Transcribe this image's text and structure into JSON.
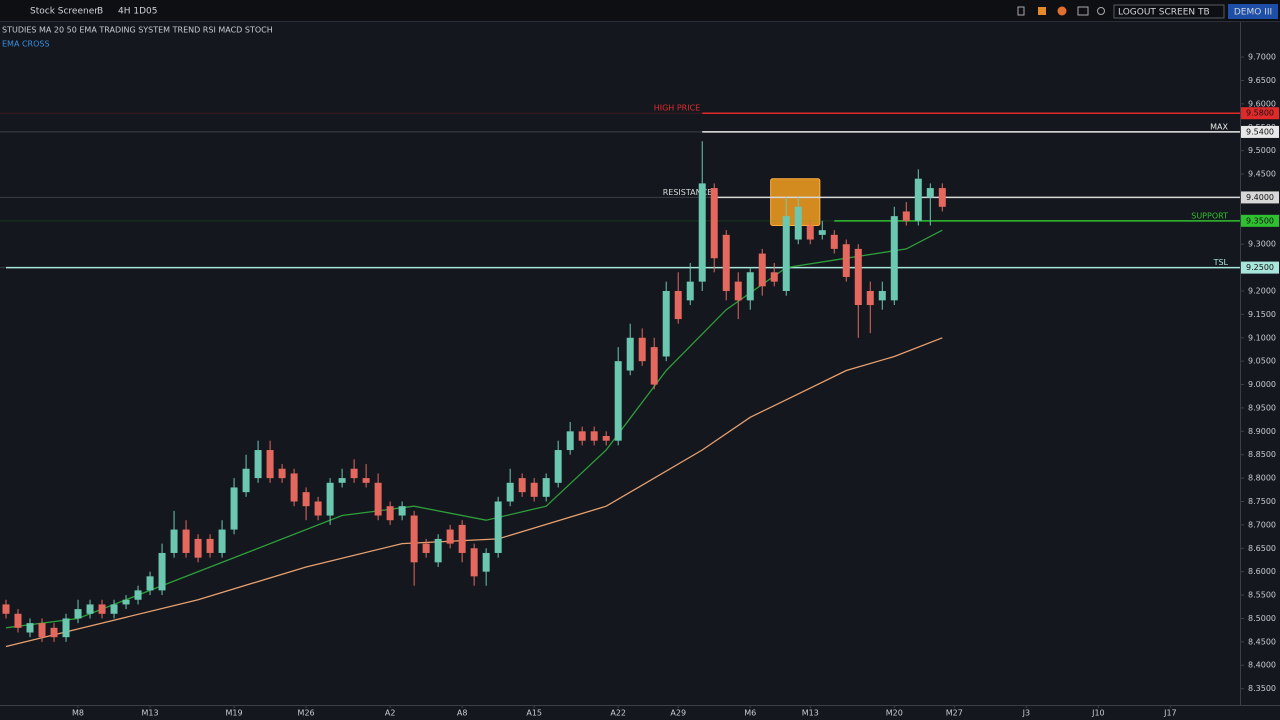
{
  "toolbar": {
    "left": [
      "Stock Screener",
      "B",
      "4H 1D05"
    ],
    "right": [
      "LOGOUT SCREEN TB",
      "DEMO III"
    ]
  },
  "chart_data": {
    "type": "candlestick",
    "title": "STUDIES MA 20 50 EMA TRADING SYSTEM TREND RSI MACD STOCH",
    "subtitle": "EMA CROSS",
    "up_color": "#6cc7b0",
    "down_color": "#e5685e",
    "open": [
      8.53,
      8.51,
      8.47,
      8.49,
      8.48,
      8.46,
      8.5,
      8.51,
      8.53,
      8.51,
      8.53,
      8.54,
      8.56,
      8.56,
      8.64,
      8.69,
      8.67,
      8.67,
      8.64,
      8.69,
      8.77,
      8.8,
      8.86,
      8.82,
      8.81,
      8.77,
      8.75,
      8.72,
      8.79,
      8.82,
      8.8,
      8.79,
      8.74,
      8.72,
      8.72,
      8.66,
      8.62,
      8.69,
      8.7,
      8.65,
      8.6,
      8.64,
      8.75,
      8.8,
      8.79,
      8.76,
      8.79,
      8.86,
      8.9,
      8.9,
      8.89,
      8.88,
      9.03,
      9.1,
      9.08,
      9.06,
      9.2,
      9.18,
      9.22,
      9.42,
      9.32,
      9.22,
      9.18,
      9.28,
      9.24,
      9.2,
      9.31,
      9.34,
      9.32,
      9.32,
      9.3,
      9.29,
      9.2,
      9.18,
      9.18,
      9.37,
      9.35,
      9.4,
      9.42
    ],
    "high": [
      8.54,
      8.52,
      8.5,
      8.5,
      8.49,
      8.51,
      8.54,
      8.54,
      8.54,
      8.54,
      8.55,
      8.57,
      8.6,
      8.66,
      8.73,
      8.71,
      8.68,
      8.68,
      8.71,
      8.8,
      8.85,
      8.88,
      8.88,
      8.83,
      8.82,
      8.78,
      8.76,
      8.8,
      8.82,
      8.84,
      8.83,
      8.81,
      8.75,
      8.75,
      8.73,
      8.67,
      8.68,
      8.7,
      8.71,
      8.66,
      8.65,
      8.76,
      8.82,
      8.81,
      8.8,
      8.81,
      8.88,
      8.92,
      8.91,
      8.91,
      8.9,
      9.08,
      9.13,
      9.12,
      9.1,
      9.22,
      9.24,
      9.26,
      9.52,
      9.43,
      9.33,
      9.24,
      9.25,
      9.29,
      9.26,
      9.4,
      9.4,
      9.35,
      9.35,
      9.33,
      9.31,
      9.3,
      9.22,
      9.22,
      9.38,
      9.39,
      9.46,
      9.43,
      9.43
    ],
    "low": [
      8.5,
      8.47,
      8.46,
      8.45,
      8.45,
      8.45,
      8.49,
      8.5,
      8.5,
      8.5,
      8.52,
      8.53,
      8.55,
      8.55,
      8.63,
      8.63,
      8.62,
      8.63,
      8.63,
      8.68,
      8.76,
      8.79,
      8.79,
      8.79,
      8.74,
      8.71,
      8.71,
      8.7,
      8.78,
      8.79,
      8.78,
      8.71,
      8.7,
      8.71,
      8.57,
      8.63,
      8.61,
      8.65,
      8.62,
      8.57,
      8.57,
      8.63,
      8.74,
      8.76,
      8.75,
      8.75,
      8.78,
      8.85,
      8.87,
      8.87,
      8.87,
      8.87,
      9.02,
      9.04,
      8.99,
      9.05,
      9.13,
      9.17,
      9.2,
      9.24,
      9.18,
      9.14,
      9.16,
      9.19,
      9.21,
      9.19,
      9.3,
      9.3,
      9.31,
      9.28,
      9.22,
      9.1,
      9.11,
      9.16,
      9.17,
      9.34,
      9.34,
      9.34,
      9.37
    ],
    "close": [
      8.51,
      8.48,
      8.49,
      8.46,
      8.46,
      8.5,
      8.52,
      8.53,
      8.51,
      8.53,
      8.54,
      8.56,
      8.59,
      8.64,
      8.69,
      8.64,
      8.63,
      8.64,
      8.69,
      8.78,
      8.82,
      8.86,
      8.8,
      8.8,
      8.75,
      8.74,
      8.72,
      8.79,
      8.8,
      8.8,
      8.79,
      8.72,
      8.71,
      8.74,
      8.62,
      8.64,
      8.67,
      8.66,
      8.64,
      8.59,
      8.64,
      8.75,
      8.79,
      8.77,
      8.76,
      8.8,
      8.86,
      8.9,
      8.88,
      8.88,
      8.88,
      9.05,
      9.1,
      9.05,
      9.0,
      9.2,
      9.14,
      9.22,
      9.43,
      9.27,
      9.2,
      9.18,
      9.24,
      9.21,
      9.22,
      9.36,
      9.38,
      9.31,
      9.33,
      9.29,
      9.23,
      9.17,
      9.17,
      9.2,
      9.36,
      9.35,
      9.44,
      9.42,
      9.38
    ],
    "series": [
      {
        "color": "#2e9e3a",
        "x": [
          0,
          6,
          12,
          20,
          28,
          34,
          40,
          45,
          50,
          55,
          60,
          65,
          70,
          75,
          78
        ],
        "values": [
          8.48,
          8.5,
          8.56,
          8.64,
          8.72,
          8.74,
          8.71,
          8.74,
          8.86,
          9.03,
          9.16,
          9.25,
          9.27,
          9.29,
          9.33
        ]
      },
      {
        "color": "#e8a070",
        "x": [
          0,
          8,
          16,
          25,
          33,
          41,
          50,
          58,
          62,
          66,
          70,
          74,
          78
        ],
        "values": [
          8.44,
          8.49,
          8.54,
          8.61,
          8.66,
          8.67,
          8.74,
          8.86,
          8.93,
          8.98,
          9.03,
          9.06,
          9.1
        ]
      }
    ],
    "levels": [
      {
        "value": 9.58,
        "label": "9.5800",
        "text": "HIGH PRICE",
        "text_side": "left",
        "color": "#e02a2a",
        "start": 58
      },
      {
        "value": 9.54,
        "label": "9.5400",
        "text": "MAX",
        "text_side": "right",
        "color": "#e8e8e8",
        "start": 58
      },
      {
        "value": 9.4,
        "label": "9.4000",
        "text": "RESISTANCE",
        "text_side": "left",
        "color": "#d8d8d8",
        "start": 59
      },
      {
        "value": 9.35,
        "label": "9.3500",
        "text": "SUPPORT",
        "text_side": "right",
        "color": "#2fc02f",
        "start": 69
      },
      {
        "value": 9.25,
        "label": "9.2500",
        "text": "TSL",
        "text_side": "right",
        "color": "#a8e6dc",
        "start": 0
      }
    ],
    "zone": {
      "x": [
        63.7,
        67.8
      ],
      "y": [
        9.34,
        9.44
      ],
      "color": "#f5a020"
    },
    "xlim": [
      -0.5,
      102.8
    ],
    "xticks": [
      {
        "value": 6,
        "label": "M8"
      },
      {
        "value": 12,
        "label": "M13"
      },
      {
        "value": 19,
        "label": "M19"
      },
      {
        "value": 25,
        "label": "M26"
      },
      {
        "value": 32,
        "label": "A2"
      },
      {
        "value": 38,
        "label": "A8"
      },
      {
        "value": 44,
        "label": "A15"
      },
      {
        "value": 51,
        "label": "A22"
      },
      {
        "value": 56,
        "label": "A29"
      },
      {
        "value": 62,
        "label": "M6"
      },
      {
        "value": 67,
        "label": "M13"
      },
      {
        "value": 74,
        "label": "M20"
      },
      {
        "value": 79,
        "label": "M27"
      },
      {
        "value": 85,
        "label": "J3"
      },
      {
        "value": 91,
        "label": "J10"
      },
      {
        "value": 97,
        "label": "J17"
      }
    ],
    "ylim": [
      8.315,
      9.775
    ],
    "yticks": [
      {
        "value": 9.7,
        "label": "9.7000"
      },
      {
        "value": 9.65,
        "label": "9.6500"
      },
      {
        "value": 9.6,
        "label": "9.6000"
      },
      {
        "value": 9.55,
        "label": "9.5500"
      },
      {
        "value": 9.5,
        "label": "9.5000"
      },
      {
        "value": 9.45,
        "label": "9.4500"
      },
      {
        "value": 9.4,
        "label": "9.4000"
      },
      {
        "value": 9.35,
        "label": "9.3500"
      },
      {
        "value": 9.3,
        "label": "9.3000"
      },
      {
        "value": 9.25,
        "label": "9.2500"
      },
      {
        "value": 9.2,
        "label": "9.2000"
      },
      {
        "value": 9.15,
        "label": "9.1500"
      },
      {
        "value": 9.1,
        "label": "9.1000"
      },
      {
        "value": 9.05,
        "label": "9.0500"
      },
      {
        "value": 9.0,
        "label": "9.0000"
      },
      {
        "value": 8.95,
        "label": "8.9500"
      },
      {
        "value": 8.9,
        "label": "8.9000"
      },
      {
        "value": 8.85,
        "label": "8.8500"
      },
      {
        "value": 8.8,
        "label": "8.8000"
      },
      {
        "value": 8.75,
        "label": "8.7500"
      },
      {
        "value": 8.7,
        "label": "8.7000"
      },
      {
        "value": 8.65,
        "label": "8.6500"
      },
      {
        "value": 8.6,
        "label": "8.6000"
      },
      {
        "value": 8.55,
        "label": "8.5500"
      },
      {
        "value": 8.5,
        "label": "8.5000"
      },
      {
        "value": 8.45,
        "label": "8.4500"
      },
      {
        "value": 8.4,
        "label": "8.4000"
      },
      {
        "value": 8.35,
        "label": "8.3500"
      }
    ]
  }
}
